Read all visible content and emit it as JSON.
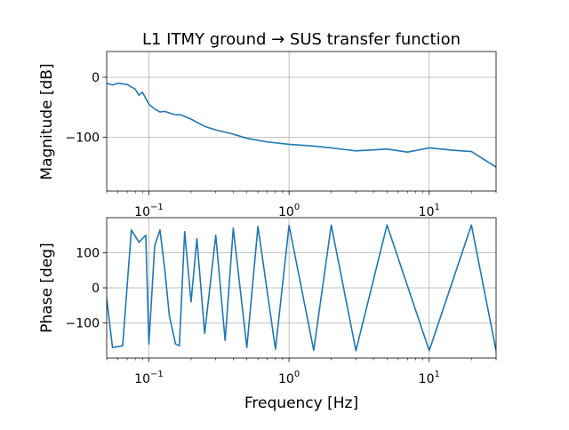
{
  "chart_data": [
    {
      "type": "line",
      "title": "L1 ITMY ground → SUS transfer function",
      "xlabel": "",
      "ylabel": "Magnitude [dB]",
      "xscale": "log",
      "xlim": [
        0.05,
        30
      ],
      "ylim": [
        -190,
        43
      ],
      "grid": true,
      "color": "#1f77b4",
      "x_ticks": [
        {
          "base": "10",
          "exp": "−1",
          "value": 0.1
        },
        {
          "base": "10",
          "exp": "0",
          "value": 1
        },
        {
          "base": "10",
          "exp": "1",
          "value": 10
        }
      ],
      "y_ticks": [
        {
          "label": "0",
          "value": 0
        },
        {
          "label": "−100",
          "value": -100
        }
      ],
      "x": [
        0.05,
        0.055,
        0.06,
        0.07,
        0.08,
        0.085,
        0.09,
        0.1,
        0.11,
        0.12,
        0.13,
        0.15,
        0.17,
        0.2,
        0.25,
        0.3,
        0.4,
        0.5,
        0.7,
        1,
        1.5,
        2,
        3,
        5,
        7,
        10,
        15,
        20,
        30
      ],
      "y": [
        -10,
        -13,
        -10,
        -12,
        -20,
        -30,
        -25,
        -45,
        -53,
        -58,
        -57,
        -62,
        -63,
        -70,
        -82,
        -88,
        -95,
        -102,
        -108,
        -112,
        -115,
        -118,
        -123,
        -120,
        -125,
        -118,
        -122,
        -124,
        -150
      ]
    },
    {
      "type": "line",
      "title": "",
      "xlabel": "Frequency [Hz]",
      "ylabel": "Phase [deg]",
      "xscale": "log",
      "xlim": [
        0.05,
        30
      ],
      "ylim": [
        -200,
        200
      ],
      "grid": true,
      "color": "#1f77b4",
      "x_ticks": [
        {
          "base": "10",
          "exp": "−1",
          "value": 0.1
        },
        {
          "base": "10",
          "exp": "0",
          "value": 1
        },
        {
          "base": "10",
          "exp": "1",
          "value": 10
        }
      ],
      "y_ticks": [
        {
          "label": "100",
          "value": 100
        },
        {
          "label": "0",
          "value": 0
        },
        {
          "label": "−100",
          "value": -100
        }
      ],
      "x": [
        0.05,
        0.055,
        0.065,
        0.075,
        0.085,
        0.095,
        0.1,
        0.11,
        0.12,
        0.13,
        0.14,
        0.155,
        0.165,
        0.18,
        0.2,
        0.22,
        0.25,
        0.3,
        0.35,
        0.4,
        0.5,
        0.6,
        0.8,
        1,
        1.5,
        2,
        3,
        5,
        10,
        20,
        30
      ],
      "y": [
        -30,
        -170,
        -165,
        165,
        130,
        150,
        -160,
        120,
        165,
        50,
        -80,
        -160,
        -165,
        160,
        -40,
        140,
        -130,
        150,
        -150,
        170,
        -170,
        175,
        -175,
        178,
        -178,
        179,
        -179,
        179,
        -179,
        179,
        -179
      ]
    }
  ]
}
